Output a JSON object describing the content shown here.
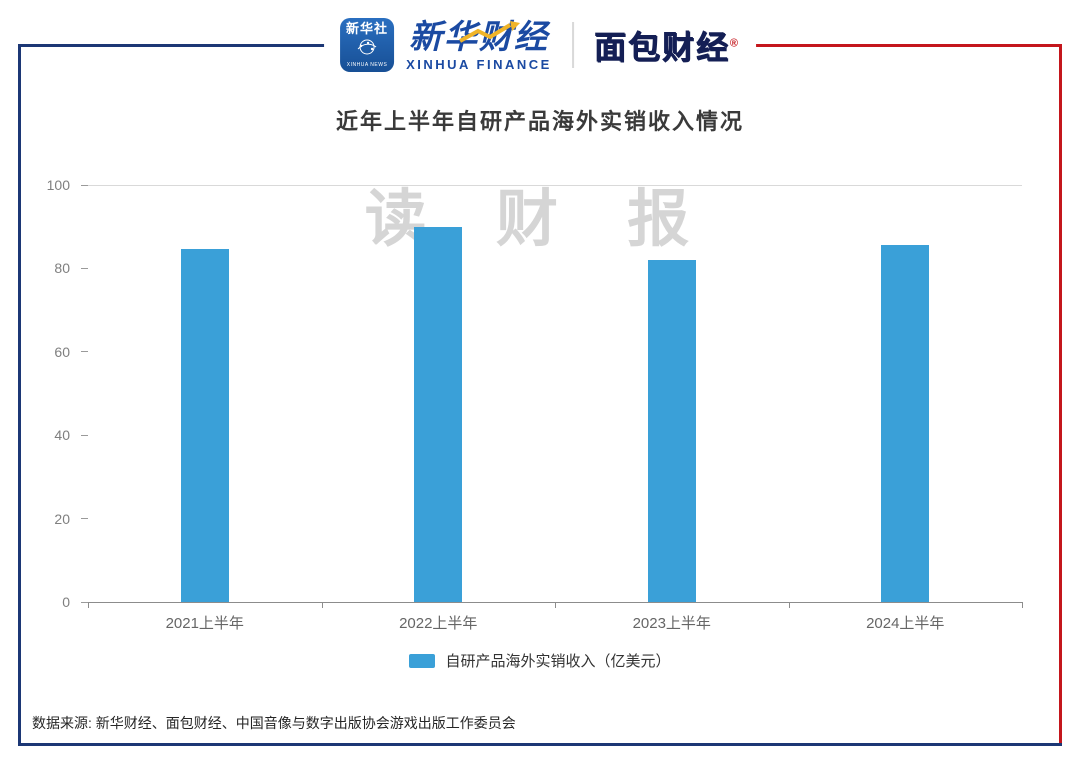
{
  "header": {
    "xinhua_badge": {
      "name_cn": "新华社",
      "name_en": "XINHUA NEWS"
    },
    "xinhua_finance": {
      "name_cn": "新华财经",
      "name_en": "XINHUA FINANCE"
    },
    "mianbao_logo": {
      "text": "面包财经",
      "reg": "®"
    }
  },
  "chart_data": {
    "type": "bar",
    "title": "近年上半年自研产品海外实销收入情况",
    "categories": [
      "2021上半年",
      "2022上半年",
      "2023上半年",
      "2024上半年"
    ],
    "values": [
      84.68,
      89.89,
      82.06,
      85.54
    ],
    "ylim": [
      0,
      100
    ],
    "yticks": [
      0,
      20,
      40,
      60,
      80,
      100
    ],
    "legend": "自研产品海外实销收入（亿美元）",
    "watermark": "读 财 报",
    "grid": "top-and-baseline-only",
    "legend_position": "bottom-center",
    "colors": {
      "bar": "#3aa0d8",
      "border_blue": "#1c3775",
      "border_red": "#c4161c",
      "xinhua_blue": "#1b4aa2",
      "gold": "#f0b428"
    }
  },
  "footer": {
    "source_text": "数据来源: 新华财经、面包财经、中国音像与数字出版协会游戏出版工作委员会"
  }
}
